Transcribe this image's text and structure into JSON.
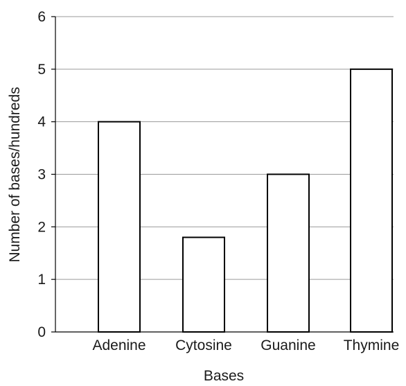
{
  "chart_data": {
    "type": "bar",
    "title": "",
    "xlabel": "Bases",
    "ylabel": "Number of bases/hundreds",
    "categories": [
      "Adenine",
      "Cytosine",
      "Guanine",
      "Thymine"
    ],
    "values": [
      4,
      1.8,
      3,
      5
    ],
    "ylim": [
      0,
      6
    ],
    "yticks": [
      "0",
      "1",
      "2",
      "3",
      "4",
      "5",
      "6"
    ],
    "grid": true,
    "legend": "none",
    "colors": {
      "bar_fill": "#ffffff",
      "bar_stroke": "#000000",
      "grid": "#9a9a9a"
    }
  }
}
